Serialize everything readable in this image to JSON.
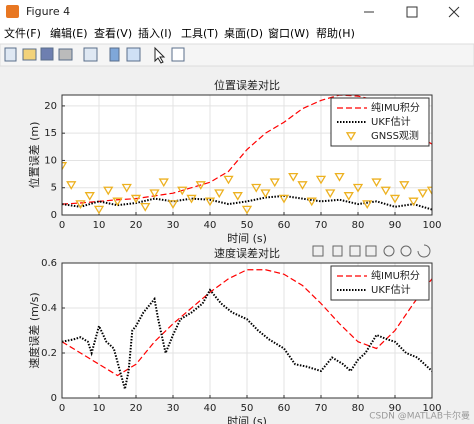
{
  "window": {
    "title": "Figure 4"
  },
  "menu": [
    "文件(F)",
    "编辑(E)",
    "查看(V)",
    "插入(I)",
    "工具(T)",
    "桌面(D)",
    "窗口(W)",
    "帮助(H)"
  ],
  "watermark": "CSDN @MATLAB卡尔曼",
  "chart_data": [
    {
      "type": "line",
      "title": "位置误差对比",
      "x_label": "时间 (s)",
      "y_label": "位置误差 (m)",
      "xlim": [
        0,
        100
      ],
      "xticks": [
        0,
        10,
        20,
        30,
        40,
        50,
        60,
        70,
        80,
        90,
        100
      ],
      "ylim": [
        0,
        22
      ],
      "yticks": [
        0,
        5,
        10,
        15,
        20
      ],
      "grid": true,
      "legend": "northeast",
      "series": [
        {
          "name": "纯IMU积分",
          "color": "#ff0000",
          "linestyle": "dashed",
          "x": [
            0,
            5,
            10,
            15,
            20,
            25,
            30,
            35,
            40,
            45,
            50,
            55,
            60,
            65,
            70,
            75,
            80,
            85,
            90,
            95,
            100
          ],
          "values": [
            2,
            2.2,
            2.5,
            2.8,
            3,
            3.5,
            4,
            5,
            6,
            8,
            12,
            15,
            17,
            19.5,
            21,
            22,
            21.8,
            21,
            18,
            15,
            13
          ]
        },
        {
          "name": "UKF估计",
          "color": "#000000",
          "linestyle": "dotted",
          "x": [
            0,
            5,
            10,
            15,
            20,
            25,
            30,
            35,
            40,
            45,
            50,
            55,
            60,
            65,
            70,
            75,
            80,
            85,
            90,
            95,
            100
          ],
          "values": [
            2,
            1.5,
            2.5,
            1.8,
            2.2,
            3,
            2.5,
            3,
            2.8,
            2,
            2.5,
            3.2,
            3.5,
            3,
            2.5,
            2.8,
            2,
            2.5,
            1.5,
            2,
            1
          ]
        },
        {
          "name": "GNSS观测",
          "color": "#edb120",
          "marker": "triangle-down",
          "x": [
            0,
            2.5,
            5,
            7.5,
            10,
            12.5,
            15,
            17.5,
            20,
            22.5,
            25,
            27.5,
            30,
            32.5,
            35,
            37.5,
            40,
            42.5,
            45,
            47.5,
            50,
            52.5,
            55,
            57.5,
            60,
            62.5,
            65,
            67.5,
            70,
            72.5,
            75,
            77.5,
            80,
            82.5,
            85,
            87.5,
            90,
            92.5,
            95,
            97.5,
            100
          ],
          "values": [
            9,
            5.5,
            2,
            3.5,
            1,
            4.5,
            2.5,
            5,
            3,
            1.5,
            4,
            6,
            2,
            4.5,
            3,
            5.5,
            2.5,
            4,
            6.5,
            3.5,
            1,
            5,
            4,
            6,
            3,
            7,
            5.5,
            2.5,
            6.5,
            4,
            7,
            3.5,
            5,
            2,
            6,
            4.5,
            3,
            5.5,
            2.5,
            4,
            4.5
          ]
        }
      ]
    },
    {
      "type": "line",
      "title": "速度误差对比",
      "x_label": "时间 (s)",
      "y_label": "速度误差 (m/s)",
      "xlim": [
        0,
        100
      ],
      "xticks": [
        0,
        10,
        20,
        30,
        40,
        50,
        60,
        70,
        80,
        90,
        100
      ],
      "ylim": [
        0,
        0.6
      ],
      "yticks": [
        0,
        0.2,
        0.4,
        0.6
      ],
      "grid": true,
      "legend": "northeast",
      "series": [
        {
          "name": "纯IMU积分",
          "color": "#ff0000",
          "linestyle": "dashed",
          "x": [
            0,
            5,
            10,
            15,
            20,
            25,
            30,
            35,
            40,
            45,
            50,
            55,
            60,
            65,
            70,
            75,
            80,
            85,
            90,
            95,
            100
          ],
          "values": [
            0.25,
            0.2,
            0.15,
            0.1,
            0.15,
            0.25,
            0.33,
            0.4,
            0.47,
            0.53,
            0.57,
            0.57,
            0.55,
            0.5,
            0.42,
            0.33,
            0.25,
            0.22,
            0.3,
            0.42,
            0.53
          ]
        },
        {
          "name": "UKF估计",
          "color": "#000000",
          "linestyle": "dotted",
          "x": [
            0,
            3,
            5,
            7,
            8,
            10,
            12,
            14,
            16,
            17,
            18,
            19,
            20,
            22,
            24,
            25,
            26,
            28,
            30,
            32,
            35,
            38,
            40,
            43,
            46,
            50,
            53,
            56,
            60,
            63,
            66,
            70,
            73,
            76,
            78,
            80,
            82,
            85,
            88,
            90,
            93,
            96,
            100
          ],
          "values": [
            0.25,
            0.26,
            0.27,
            0.25,
            0.2,
            0.32,
            0.25,
            0.22,
            0.1,
            0.04,
            0.12,
            0.3,
            0.32,
            0.38,
            0.42,
            0.44,
            0.35,
            0.2,
            0.28,
            0.35,
            0.38,
            0.42,
            0.48,
            0.42,
            0.38,
            0.35,
            0.3,
            0.26,
            0.22,
            0.15,
            0.14,
            0.12,
            0.18,
            0.15,
            0.12,
            0.17,
            0.2,
            0.28,
            0.26,
            0.25,
            0.2,
            0.18,
            0.12
          ]
        }
      ]
    }
  ]
}
